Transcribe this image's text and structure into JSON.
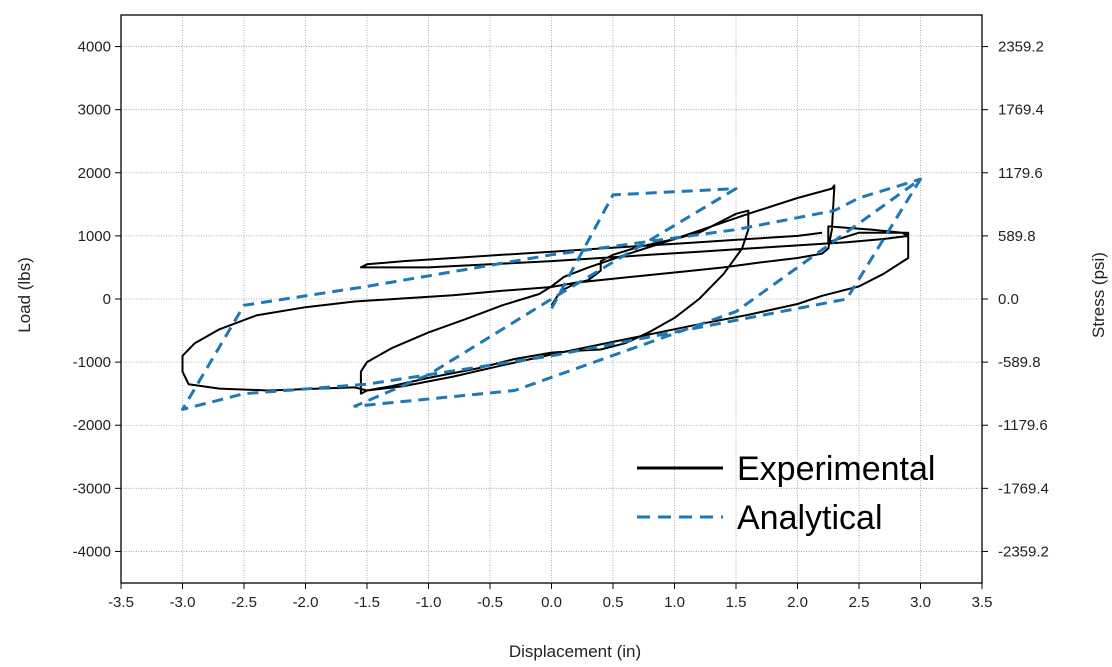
{
  "chart_data": {
    "type": "line",
    "title": "",
    "xlabel": "Displacement (in)",
    "ylabel": "Load (lbs)",
    "y2label": "Stress (psi)",
    "xlim": [
      -3.5,
      3.5
    ],
    "ylim": [
      -4500,
      4500
    ],
    "x_ticks": [
      -3.5,
      -3.0,
      -2.5,
      -2.0,
      -1.5,
      -1.0,
      -0.5,
      0.0,
      0.5,
      1.0,
      1.5,
      2.0,
      2.5,
      3.0,
      3.5
    ],
    "x_tick_labels": [
      "-3.5",
      "-3.0",
      "-2.5",
      "-2.0",
      "-1.5",
      "-1.0",
      "-0.5",
      "0.0",
      "0.5",
      "1.0",
      "1.5",
      "2.0",
      "2.5",
      "3.0",
      "3.5"
    ],
    "y_ticks": [
      -4000,
      -3000,
      -2000,
      -1000,
      0,
      1000,
      2000,
      3000,
      4000
    ],
    "y_tick_labels": [
      "-4000",
      "-3000",
      "-2000",
      "-1000",
      "0",
      "1000",
      "2000",
      "3000",
      "4000"
    ],
    "y2_ticks": [
      -4000,
      -3000,
      -2000,
      -1000,
      0,
      1000,
      2000,
      3000,
      4000
    ],
    "y2_tick_labels": [
      "-2359.2",
      "-1769.4",
      "-1179.6",
      "-589.8",
      "0.0",
      "589.8",
      "1179.6",
      "1769.4",
      "2359.2"
    ],
    "grid": true,
    "legend_position": "bottom-right",
    "series": [
      {
        "name": "Experimental",
        "style": "solid",
        "color": "#000000",
        "x": [
          0.0,
          0.05,
          0.1,
          0.2,
          0.3,
          0.4,
          0.4,
          0.5,
          0.7,
          1.0,
          1.2,
          1.4,
          1.5,
          1.6,
          1.6,
          1.55,
          1.4,
          1.2,
          1.0,
          0.8,
          0.6,
          0.4,
          0.2,
          0.0,
          -0.3,
          -0.6,
          -1.0,
          -1.3,
          -1.5,
          -1.55,
          -1.55,
          -1.5,
          -1.3,
          -1.0,
          -0.7,
          -0.4,
          -0.1,
          0.0,
          0.1,
          0.3,
          0.6,
          1.0,
          1.3,
          1.6,
          2.0,
          2.28,
          2.3,
          2.28,
          2.25,
          2.2,
          2.0,
          1.7,
          1.4,
          1.1,
          0.8,
          0.5,
          0.2,
          0.0,
          -0.4,
          -0.8,
          -1.2,
          -1.6,
          -2.0,
          -2.4,
          -2.7,
          -2.9,
          -3.0,
          -3.0,
          -2.95,
          -2.7,
          -2.3,
          -1.9,
          -1.6,
          -1.5,
          -1.2,
          -0.8,
          -0.4,
          0.0,
          0.4,
          0.8,
          1.2,
          1.6,
          2.0,
          2.2,
          2.5,
          2.7,
          2.9,
          2.9,
          2.85,
          2.6,
          2.25,
          2.25,
          2.5,
          2.9,
          2.9,
          2.7,
          2.4,
          2.0,
          1.6,
          1.2,
          0.8,
          0.4,
          0.0,
          -0.5,
          -1.0,
          -1.4,
          -1.55,
          -1.5,
          -1.2,
          -0.8,
          -0.4,
          0.0,
          0.4,
          0.8,
          1.2,
          1.6,
          2.0,
          2.2
        ],
        "y": [
          -100,
          50,
          150,
          250,
          300,
          450,
          600,
          700,
          820,
          950,
          1050,
          1250,
          1350,
          1400,
          1100,
          800,
          400,
          0,
          -300,
          -520,
          -700,
          -800,
          -820,
          -850,
          -950,
          -1100,
          -1250,
          -1380,
          -1450,
          -1500,
          -1150,
          -1000,
          -780,
          -530,
          -320,
          -100,
          80,
          200,
          350,
          500,
          700,
          950,
          1150,
          1350,
          1600,
          1750,
          1800,
          1100,
          800,
          720,
          650,
          580,
          500,
          440,
          380,
          320,
          260,
          190,
          130,
          60,
          10,
          -40,
          -130,
          -260,
          -480,
          -700,
          -900,
          -1150,
          -1350,
          -1420,
          -1450,
          -1420,
          -1400,
          -1450,
          -1380,
          -1230,
          -1050,
          -880,
          -720,
          -560,
          -400,
          -250,
          -80,
          50,
          200,
          400,
          650,
          1000,
          1050,
          1100,
          1150,
          900,
          1050,
          1050,
          1000,
          950,
          900,
          850,
          800,
          750,
          700,
          650,
          600,
          550,
          500,
          500,
          500,
          550,
          600,
          650,
          700,
          750,
          800,
          850,
          900,
          950,
          1000,
          1050
        ]
      },
      {
        "name": "Analytical",
        "style": "dashed",
        "color": "#1f77b4",
        "x": [
          0.0,
          0.5,
          1.5,
          1.5,
          0.0,
          -1.0,
          -1.6,
          -1.6,
          -0.3,
          1.5,
          3.0,
          2.4,
          0.0,
          -1.5,
          -2.5,
          -3.0,
          -3.0,
          -2.5,
          -1.5,
          0.0,
          1.5,
          2.3,
          2.5,
          3.0
        ],
        "y": [
          -150,
          1650,
          1750,
          1750,
          0,
          -1200,
          -1700,
          -1700,
          -1450,
          -200,
          1900,
          0,
          -900,
          -1350,
          -1500,
          -1750,
          -1750,
          -100,
          200,
          700,
          1100,
          1400,
          1600,
          1900
        ]
      }
    ]
  }
}
